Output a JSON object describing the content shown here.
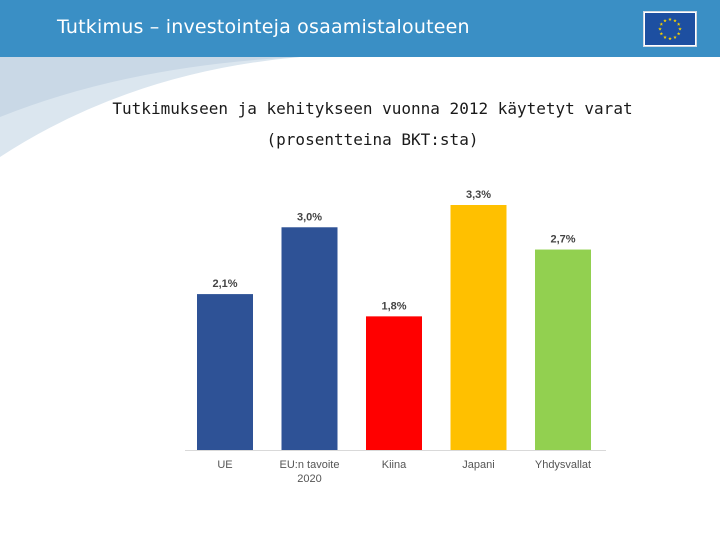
{
  "header": {
    "title": "Tutkimus – investointeja osaamistalouteen",
    "flag_icon": "eu-flag-icon",
    "colors": {
      "bar": "#3a8fc5",
      "flag_blue": "#1d4fa1",
      "flag_star": "#f5d100"
    }
  },
  "chart_data": {
    "type": "bar",
    "title": "Tutkimukseen ja kehitykseen vuonna 2012 käytetyt varat",
    "subtitle": "(prosentteina BKT:sta)",
    "categories": [
      "UE",
      "EU:n tavoite 2020",
      "Kiina",
      "Japani",
      "Yhdysvallat"
    ],
    "category_lines": [
      [
        "UE"
      ],
      [
        "EU:n tavoite",
        "2020"
      ],
      [
        "Kiina"
      ],
      [
        "Japani"
      ],
      [
        "Yhdysvallat"
      ]
    ],
    "values": [
      2.1,
      3.0,
      1.8,
      3.3,
      2.7
    ],
    "value_labels": [
      "2,1%",
      "3,0%",
      "1,8%",
      "3,3%",
      "2,7%"
    ],
    "colors": [
      "#2e5296",
      "#2e5296",
      "#ff0000",
      "#ffc000",
      "#92d050"
    ],
    "ylim": [
      0,
      3.3
    ],
    "xlabel": "",
    "ylabel": "",
    "grid": false
  }
}
